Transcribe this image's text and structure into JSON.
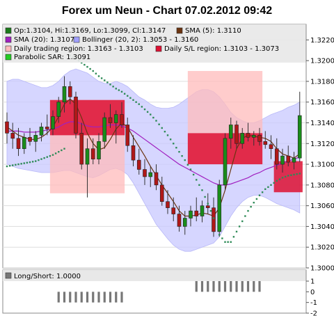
{
  "chart_data": [
    {
      "type": "candlestick",
      "title": "Forex um Neun - Chart 07.02.2012 09:42",
      "ylim": [
        1.3,
        1.3235
      ],
      "y_ticks": [
        "1.3220",
        "1.3200",
        "1.3180",
        "1.3160",
        "1.3140",
        "1.3120",
        "1.3100",
        "1.3080",
        "1.3060",
        "1.3040",
        "1.3020",
        "1.3000"
      ],
      "legend": [
        {
          "label": "Op:1.3104, Hi:1.3169, Lo:1.3099, Cl:1.3147",
          "color": "#1a7a1a"
        },
        {
          "label": "SMA (5): 1.3110",
          "color": "#6b3410"
        },
        {
          "label": "SMA (20): 1.3107",
          "color": "#a020c0"
        },
        {
          "label": "Bollinger (20, 2): 1.3053 - 1.3160",
          "color": "#a0a0ff"
        },
        {
          "label": "Daily trading region: 1.3163 - 1.3103",
          "color": "#ffbbbb"
        },
        {
          "label": "Daily S/L region: 1.3103 - 1.3073",
          "color": "#dd1133"
        },
        {
          "label": "Parabolic SAR: 1.3091",
          "color": "#22cc22"
        }
      ],
      "colors": {
        "up": "#1a8c1a",
        "down": "#b01818",
        "sma5": "#6b3410",
        "sma20": "#a020c0",
        "bollinger": "#c8c8ff",
        "trading_region": "#ffbbbb",
        "sl_region": "#dd1133",
        "sar": "#2e8b57"
      },
      "candles": [
        [
          1.3141,
          1.315,
          1.312,
          1.313
        ],
        [
          1.313,
          1.314,
          1.3115,
          1.3125
        ],
        [
          1.3125,
          1.3135,
          1.3108,
          1.3115
        ],
        [
          1.3115,
          1.313,
          1.311,
          1.3126
        ],
        [
          1.3126,
          1.3135,
          1.3118,
          1.3122
        ],
        [
          1.3122,
          1.3132,
          1.3112,
          1.3128
        ],
        [
          1.3128,
          1.314,
          1.3122,
          1.3136
        ],
        [
          1.3136,
          1.3148,
          1.3128,
          1.3134
        ],
        [
          1.3134,
          1.3152,
          1.3128,
          1.3146
        ],
        [
          1.3146,
          1.3165,
          1.314,
          1.316
        ],
        [
          1.316,
          1.3185,
          1.315,
          1.3175
        ],
        [
          1.3175,
          1.318,
          1.3158,
          1.3165
        ],
        [
          1.3165,
          1.317,
          1.3125,
          1.313
        ],
        [
          1.313,
          1.314,
          1.3095,
          1.31
        ],
        [
          1.31,
          1.3125,
          1.3068,
          1.3115
        ],
        [
          1.3115,
          1.3125,
          1.31,
          1.3105
        ],
        [
          1.3105,
          1.313,
          1.31,
          1.3122
        ],
        [
          1.3122,
          1.315,
          1.3115,
          1.3145
        ],
        [
          1.3145,
          1.3158,
          1.3135,
          1.314
        ],
        [
          1.314,
          1.3152,
          1.312,
          1.3148
        ],
        [
          1.3148,
          1.316,
          1.3135,
          1.3138
        ],
        [
          1.3138,
          1.3145,
          1.3112,
          1.3118
        ],
        [
          1.3118,
          1.3128,
          1.3098,
          1.3104
        ],
        [
          1.3104,
          1.3115,
          1.309,
          1.3095
        ],
        [
          1.3095,
          1.3105,
          1.308,
          1.3088
        ],
        [
          1.3088,
          1.3098,
          1.3078,
          1.3092
        ],
        [
          1.3092,
          1.31,
          1.3075,
          1.308
        ],
        [
          1.308,
          1.3088,
          1.306,
          1.3064
        ],
        [
          1.3064,
          1.3075,
          1.3052,
          1.3058
        ],
        [
          1.3058,
          1.3068,
          1.3045,
          1.3052
        ],
        [
          1.3052,
          1.306,
          1.3035,
          1.304
        ],
        [
          1.304,
          1.3055,
          1.3032,
          1.3048
        ],
        [
          1.3048,
          1.306,
          1.304,
          1.3055
        ],
        [
          1.3055,
          1.3068,
          1.3045,
          1.305
        ],
        [
          1.305,
          1.3065,
          1.3044,
          1.306
        ],
        [
          1.306,
          1.3072,
          1.3052,
          1.3058
        ],
        [
          1.3058,
          1.3068,
          1.303,
          1.3035
        ],
        [
          1.3035,
          1.3085,
          1.303,
          1.308
        ],
        [
          1.308,
          1.313,
          1.3075,
          1.3125
        ],
        [
          1.3125,
          1.3145,
          1.3115,
          1.3138
        ],
        [
          1.3138,
          1.3142,
          1.3115,
          1.312
        ],
        [
          1.312,
          1.3135,
          1.3115,
          1.313
        ],
        [
          1.313,
          1.314,
          1.3122,
          1.3126
        ],
        [
          1.3126,
          1.3132,
          1.3118,
          1.3128
        ],
        [
          1.3128,
          1.3135,
          1.3118,
          1.3122
        ],
        [
          1.3122,
          1.3132,
          1.3115,
          1.3119
        ],
        [
          1.3119,
          1.3128,
          1.3105,
          1.3115
        ],
        [
          1.3115,
          1.3125,
          1.3095,
          1.31
        ],
        [
          1.31,
          1.3115,
          1.3092,
          1.3108
        ],
        [
          1.3108,
          1.3118,
          1.3098,
          1.3102
        ],
        [
          1.3102,
          1.3112,
          1.3095,
          1.3106
        ],
        [
          1.3106,
          1.317,
          1.3102,
          1.3147
        ]
      ],
      "sma5": [
        1.3136,
        1.3132,
        1.3128,
        1.3126,
        1.3124,
        1.3124,
        1.3126,
        1.313,
        1.3136,
        1.3146,
        1.3158,
        1.3163,
        1.3158,
        1.3145,
        1.313,
        1.312,
        1.3114,
        1.3116,
        1.3124,
        1.3134,
        1.314,
        1.3136,
        1.3126,
        1.3117,
        1.3108,
        1.3098,
        1.3089,
        1.308,
        1.3072,
        1.3064,
        1.3055,
        1.305,
        1.305,
        1.3051,
        1.3053,
        1.3052,
        1.305,
        1.3058,
        1.3075,
        1.3095,
        1.3115,
        1.3125,
        1.3128,
        1.3127,
        1.3126,
        1.3125,
        1.3122,
        1.3115,
        1.311,
        1.3108,
        1.3106,
        1.311
      ],
      "sma20": [
        1.3132,
        1.3132,
        1.3132,
        1.3131,
        1.3131,
        1.3131,
        1.3132,
        1.3133,
        1.3134,
        1.3136,
        1.3139,
        1.3141,
        1.3141,
        1.3139,
        1.3137,
        1.3136,
        1.3136,
        1.3137,
        1.3138,
        1.3138,
        1.3137,
        1.3135,
        1.3132,
        1.3128,
        1.3124,
        1.312,
        1.3116,
        1.3112,
        1.3108,
        1.3104,
        1.31,
        1.3097,
        1.3094,
        1.3091,
        1.3088,
        1.3085,
        1.3082,
        1.308,
        1.308,
        1.3081,
        1.3083,
        1.3085,
        1.3087,
        1.309,
        1.3092,
        1.3095,
        1.3097,
        1.3099,
        1.3101,
        1.3103,
        1.3105,
        1.3107
      ],
      "boll_upper": [
        1.318,
        1.3182,
        1.3182,
        1.318,
        1.3178,
        1.3176,
        1.3174,
        1.3174,
        1.3176,
        1.318,
        1.3186,
        1.319,
        1.3192,
        1.319,
        1.3188,
        1.3184,
        1.318,
        1.3178,
        1.3178,
        1.318,
        1.3178,
        1.3175,
        1.317,
        1.3165,
        1.3162,
        1.3158,
        1.3155,
        1.3154,
        1.3154,
        1.3155,
        1.3158,
        1.3162,
        1.3166,
        1.317,
        1.3172,
        1.3172,
        1.317,
        1.3165,
        1.3158,
        1.315,
        1.3145,
        1.3142,
        1.314,
        1.314,
        1.3142,
        1.3145,
        1.3148,
        1.315,
        1.3152,
        1.3155,
        1.3157,
        1.316
      ],
      "boll_lower": [
        1.31,
        1.3098,
        1.3096,
        1.3095,
        1.3094,
        1.3093,
        1.3092,
        1.3092,
        1.3092,
        1.3093,
        1.3094,
        1.3094,
        1.3092,
        1.309,
        1.3088,
        1.3087,
        1.3089,
        1.3092,
        1.3095,
        1.3096,
        1.3094,
        1.309,
        1.3082,
        1.3072,
        1.3062,
        1.3052,
        1.3042,
        1.3035,
        1.3028,
        1.3022,
        1.3018,
        1.3016,
        1.3016,
        1.3018,
        1.302,
        1.3022,
        1.3024,
        1.303,
        1.304,
        1.305,
        1.3058,
        1.3064,
        1.3068,
        1.307,
        1.307,
        1.3068,
        1.3065,
        1.3062,
        1.306,
        1.3058,
        1.3056,
        1.3053
      ],
      "sar": [
        1.3098,
        1.3099,
        1.31,
        1.3101,
        1.3102,
        1.3103,
        1.3105,
        1.3107,
        1.3109,
        1.3112,
        1.3115,
        1.3205,
        1.3202,
        1.3198,
        1.3194,
        1.319,
        1.3185,
        1.3181,
        1.3177,
        1.3173,
        1.317,
        1.3166,
        1.3162,
        1.3158,
        1.3153,
        1.3148,
        1.3142,
        1.3135,
        1.3128,
        1.312,
        1.3112,
        1.3104,
        1.3095,
        1.3085,
        1.3075,
        1.3062,
        1.3048,
        1.3032,
        1.3025,
        1.3025,
        1.3035,
        1.3045,
        1.3055,
        1.3063,
        1.307,
        1.3076,
        1.308,
        1.3084,
        1.3087,
        1.3089,
        1.309,
        1.3091
      ],
      "regions": [
        {
          "kind": "trading",
          "from": 8,
          "to": 20,
          "low": 1.3072,
          "high": 1.3162
        },
        {
          "kind": "sl",
          "from": 8,
          "to": 20,
          "low": 1.3128,
          "high": 1.3162
        },
        {
          "kind": "trading",
          "from": 32,
          "to": 44,
          "low": 1.31,
          "high": 1.319
        },
        {
          "kind": "sl",
          "from": 32,
          "to": 44,
          "low": 1.31,
          "high": 1.313
        },
        {
          "kind": "sl",
          "from": 47,
          "to": 51,
          "low": 1.3073,
          "high": 1.3103
        }
      ]
    },
    {
      "type": "bar",
      "legend": [
        {
          "label": "Long/Short: 1.0000",
          "color": "#777777"
        }
      ],
      "ylim": [
        -2,
        1
      ],
      "y_ticks": [
        "1",
        "0",
        "-1",
        "-2"
      ],
      "bar_color": "#777777",
      "segments": [
        {
          "from": 9,
          "to": 20,
          "low": -1,
          "high": 0
        },
        {
          "from": 33,
          "to": 44,
          "low": 0,
          "high": 1
        }
      ]
    }
  ]
}
